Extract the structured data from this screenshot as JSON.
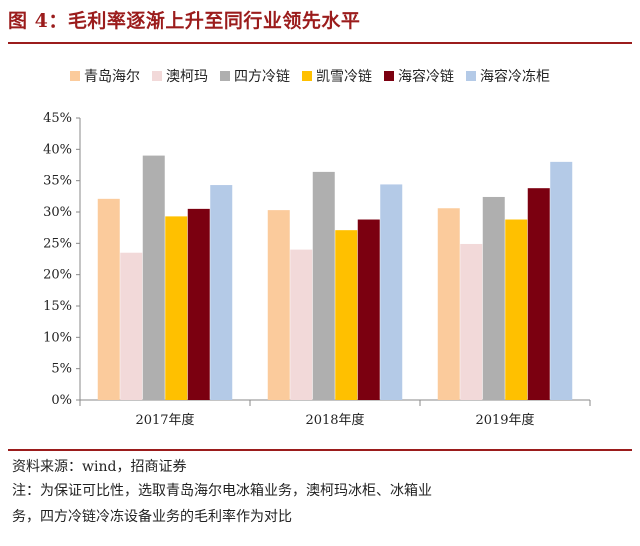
{
  "header": {
    "title": "图 4：毛利率逐渐上升至同行业领先水平"
  },
  "footer": {
    "source": "资料来源：wind，招商证券",
    "note_line1": "注：为保证可比性，选取青岛海尔电冰箱业务，澳柯玛冰柜、冰箱业",
    "note_line2": "务，四方冷链冷冻设备业务的毛利率作为对比"
  },
  "chart_data": {
    "type": "bar",
    "categories": [
      "2017年度",
      "2018年度",
      "2019年度"
    ],
    "y_ticks": [
      "0%",
      "5%",
      "10%",
      "15%",
      "20%",
      "25%",
      "30%",
      "35%",
      "40%",
      "45%"
    ],
    "ylim": [
      0,
      45
    ],
    "legend_position": "top",
    "grid": false,
    "series": [
      {
        "name": "青岛海尔",
        "color": "#FBCB9C",
        "values": [
          32.1,
          30.3,
          30.6
        ]
      },
      {
        "name": "澳柯玛",
        "color": "#F2D9D9",
        "values": [
          23.5,
          24.0,
          24.9
        ]
      },
      {
        "name": "四方冷链",
        "color": "#AFAFAF",
        "values": [
          39.0,
          36.4,
          32.4
        ]
      },
      {
        "name": "凯雪冷链",
        "color": "#FFC000",
        "values": [
          29.3,
          27.1,
          28.8
        ]
      },
      {
        "name": "海容冷链",
        "color": "#7B0010",
        "values": [
          30.5,
          28.8,
          33.8
        ]
      },
      {
        "name": "海容冷冻柜",
        "color": "#B4CAE7",
        "values": [
          34.3,
          34.4,
          38.0
        ]
      }
    ]
  }
}
